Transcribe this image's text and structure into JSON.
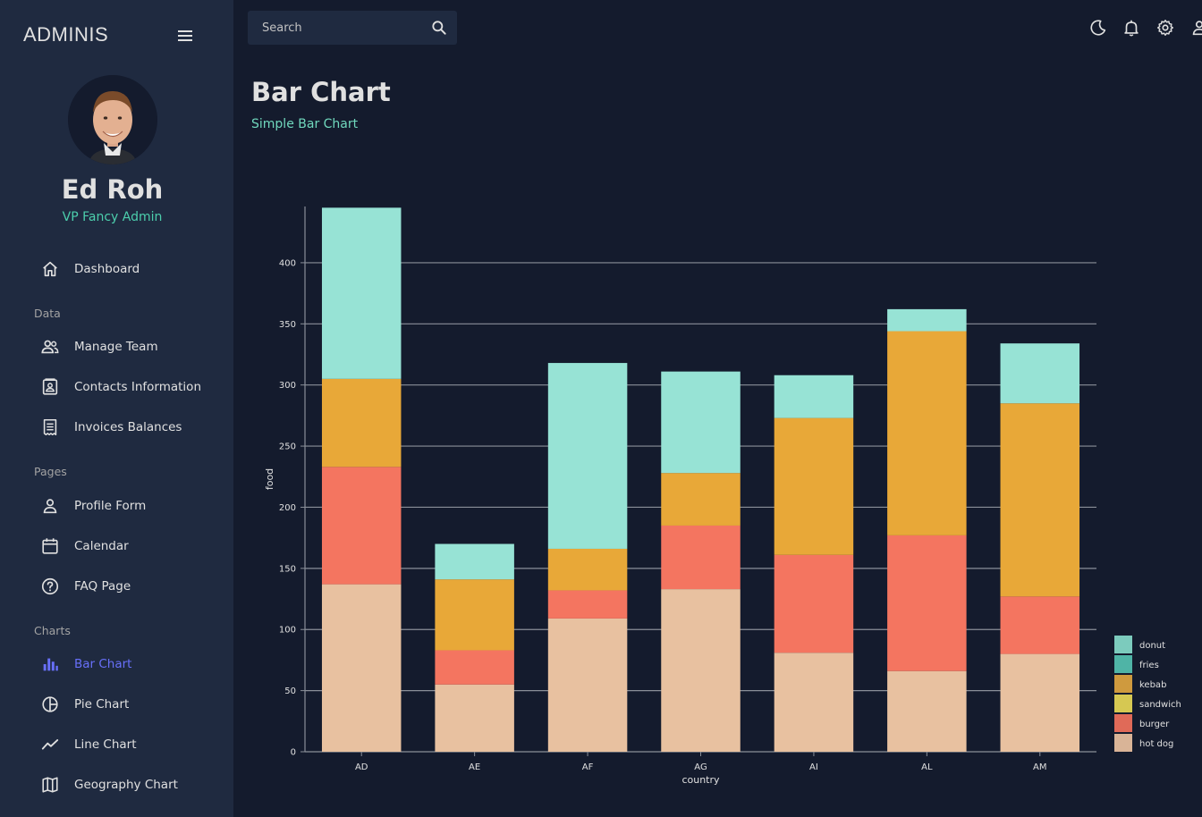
{
  "app": {
    "brand": "ADMINIS"
  },
  "user": {
    "name": "Ed Roh",
    "role": "VP Fancy Admin"
  },
  "search": {
    "placeholder": "Search"
  },
  "nav": {
    "dashboard": "Dashboard",
    "section_data": "Data",
    "manage_team": "Manage Team",
    "contacts": "Contacts Information",
    "invoices": "Invoices Balances",
    "section_pages": "Pages",
    "profile": "Profile Form",
    "calendar": "Calendar",
    "faq": "FAQ Page",
    "section_charts": "Charts",
    "bar": "Bar Chart",
    "pie": "Pie Chart",
    "line": "Line Chart",
    "geo": "Geography Chart"
  },
  "header": {
    "title": "Bar Chart",
    "subtitle": "Simple Bar Chart"
  },
  "colors": {
    "accent": "#6870fa",
    "green": "#4cceac",
    "bg": "#141b2d",
    "panel": "#1f2a40"
  },
  "chart_data": {
    "type": "bar",
    "stacked": true,
    "xlabel": "country",
    "ylabel": "food",
    "ylim": [
      0,
      446
    ],
    "yticks": [
      0,
      50,
      100,
      150,
      200,
      250,
      300,
      350,
      400
    ],
    "grid": true,
    "legend_position": "bottom-right",
    "categories": [
      "AD",
      "AE",
      "AF",
      "AG",
      "AI",
      "AL",
      "AM"
    ],
    "series": [
      {
        "name": "hot dog",
        "color": "#e8c1a0",
        "values": [
          137,
          55,
          109,
          133,
          81,
          66,
          80
        ]
      },
      {
        "name": "burger",
        "color": "#f47560",
        "values": [
          96,
          28,
          23,
          52,
          80,
          111,
          47
        ]
      },
      {
        "name": "sandwich",
        "color": "#f1e15b",
        "values": [
          0,
          0,
          0,
          0,
          0,
          0,
          0
        ]
      },
      {
        "name": "kebab",
        "color": "#e8a838",
        "values": [
          72,
          58,
          34,
          43,
          112,
          167,
          158
        ]
      },
      {
        "name": "fries",
        "color": "#61cdbb",
        "values": [
          0,
          0,
          0,
          0,
          0,
          0,
          0
        ]
      },
      {
        "name": "donut",
        "color": "#97e3d5",
        "values": [
          140,
          29,
          152,
          83,
          35,
          18,
          49
        ]
      }
    ],
    "legend": [
      {
        "name": "donut",
        "color": "#7ccbbd"
      },
      {
        "name": "fries",
        "color": "#4fb4a6"
      },
      {
        "name": "kebab",
        "color": "#cf9a3e"
      },
      {
        "name": "sandwich",
        "color": "#d6c852"
      },
      {
        "name": "burger",
        "color": "#e06a58"
      },
      {
        "name": "hot dog",
        "color": "#d9b497"
      }
    ]
  }
}
